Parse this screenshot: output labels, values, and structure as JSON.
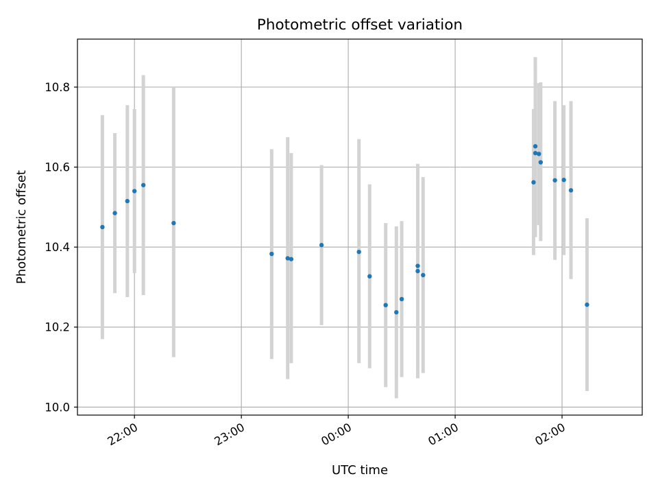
{
  "chart_data": {
    "type": "scatter",
    "title": "Photometric offset variation",
    "xlabel": "UTC time",
    "ylabel": "Photometric offset",
    "x_axis": "time",
    "xlim": [
      "21:28",
      "02:45"
    ],
    "ylim": [
      9.98,
      10.92
    ],
    "grid": true,
    "x_ticks": [
      "22:00",
      "23:00",
      "00:00",
      "01:00",
      "02:00"
    ],
    "y_ticks": [
      10.0,
      10.2,
      10.4,
      10.6,
      10.8
    ],
    "y_tick_labels": [
      "10.0",
      "10.2",
      "10.4",
      "10.6",
      "10.8"
    ],
    "marker_color": "#1f77b4",
    "errorbar_color": "#d3d3d3",
    "points": [
      {
        "x": "21:42",
        "y": 10.45,
        "low": 10.17,
        "high": 10.73
      },
      {
        "x": "21:49",
        "y": 10.485,
        "low": 10.285,
        "high": 10.685
      },
      {
        "x": "21:56",
        "y": 10.515,
        "low": 10.275,
        "high": 10.755
      },
      {
        "x": "22:00",
        "y": 10.54,
        "low": 10.335,
        "high": 10.745
      },
      {
        "x": "22:05",
        "y": 10.555,
        "low": 10.28,
        "high": 10.83
      },
      {
        "x": "22:22",
        "y": 10.46,
        "low": 10.125,
        "high": 10.8
      },
      {
        "x": "23:17",
        "y": 10.383,
        "low": 10.12,
        "high": 10.645
      },
      {
        "x": "23:26",
        "y": 10.372,
        "low": 10.07,
        "high": 10.675
      },
      {
        "x": "23:28",
        "y": 10.37,
        "low": 10.11,
        "high": 10.635
      },
      {
        "x": "23:45",
        "y": 10.405,
        "low": 10.205,
        "high": 10.605
      },
      {
        "x": "00:06",
        "y": 10.388,
        "low": 10.11,
        "high": 10.67
      },
      {
        "x": "00:12",
        "y": 10.327,
        "low": 10.097,
        "high": 10.557
      },
      {
        "x": "00:21",
        "y": 10.255,
        "low": 10.05,
        "high": 10.46
      },
      {
        "x": "00:27",
        "y": 10.237,
        "low": 10.022,
        "high": 10.452
      },
      {
        "x": "00:30",
        "y": 10.27,
        "low": 10.075,
        "high": 10.465
      },
      {
        "x": "00:39",
        "y": 10.353,
        "low": 10.098,
        "high": 10.608
      },
      {
        "x": "00:39",
        "y": 10.34,
        "low": 10.072,
        "high": 10.608
      },
      {
        "x": "00:42",
        "y": 10.33,
        "low": 10.085,
        "high": 10.575
      },
      {
        "x": "01:44",
        "y": 10.562,
        "low": 10.38,
        "high": 10.745
      },
      {
        "x": "01:45",
        "y": 10.635,
        "low": 10.425,
        "high": 10.875
      },
      {
        "x": "01:45",
        "y": 10.652,
        "low": 10.46,
        "high": 10.845
      },
      {
        "x": "01:47",
        "y": 10.633,
        "low": 10.455,
        "high": 10.81
      },
      {
        "x": "01:48",
        "y": 10.612,
        "low": 10.415,
        "high": 10.812
      },
      {
        "x": "01:56",
        "y": 10.567,
        "low": 10.368,
        "high": 10.765
      },
      {
        "x": "02:01",
        "y": 10.568,
        "low": 10.38,
        "high": 10.755
      },
      {
        "x": "02:05",
        "y": 10.542,
        "low": 10.32,
        "high": 10.765
      },
      {
        "x": "02:14",
        "y": 10.256,
        "low": 10.04,
        "high": 10.472
      }
    ]
  }
}
